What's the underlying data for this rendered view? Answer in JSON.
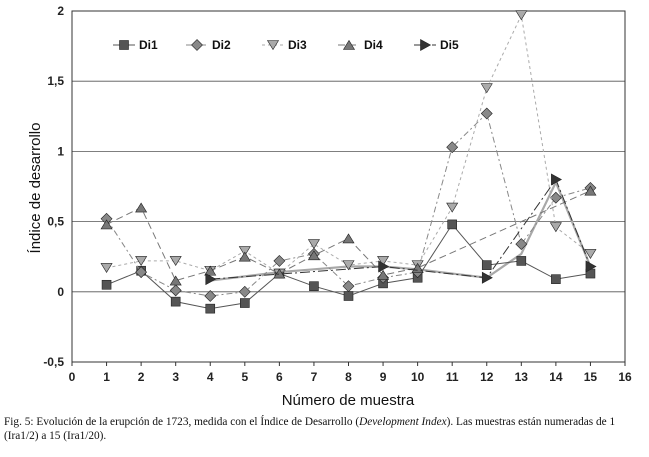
{
  "caption": {
    "prefix": "Fig. 5: Evolución de la erupción de 1723, medida con el Índice de Desarrollo (",
    "italic": "Development Index",
    "suffix": "). Las muestras están numeradas de 1 (Ira1/2) a 15 (Ira1/20)."
  },
  "chart_data": {
    "type": "line",
    "xlabel": "Número de muestra",
    "ylabel": "Índice de desarrollo",
    "xlim": [
      0,
      16
    ],
    "ylim": [
      -0.5,
      2
    ],
    "xticks": [
      "0",
      "1",
      "2",
      "3",
      "4",
      "5",
      "6",
      "7",
      "8",
      "9",
      "10",
      "11",
      "12",
      "13",
      "14",
      "15",
      "16"
    ],
    "yticks": [
      "-0,5",
      "0",
      "0,5",
      "1",
      "1,5",
      "2"
    ],
    "ytick_values": [
      -0.5,
      0,
      0.5,
      1,
      1.5,
      2
    ],
    "grid": "horizontal",
    "legend_position": "top-left",
    "x": [
      1,
      2,
      3,
      4,
      5,
      6,
      7,
      8,
      9,
      10,
      11,
      12,
      13,
      14,
      15
    ],
    "series": [
      {
        "name": "Di1",
        "marker": "square",
        "color": "#555555",
        "values": [
          0.05,
          0.15,
          -0.07,
          -0.12,
          -0.08,
          0.13,
          0.04,
          -0.03,
          0.06,
          0.1,
          0.48,
          0.19,
          0.22,
          0.09,
          0.13
        ]
      },
      {
        "name": "Di2",
        "marker": "diamond",
        "color": "#888888",
        "values": [
          0.52,
          0.14,
          0.01,
          -0.03,
          0.0,
          0.22,
          0.27,
          0.04,
          0.1,
          0.14,
          1.03,
          1.27,
          0.34,
          0.67,
          0.74
        ]
      },
      {
        "name": "Di3",
        "marker": "triangle-down",
        "color": "#aaaaaa",
        "values": [
          0.17,
          0.22,
          0.22,
          0.15,
          0.29,
          0.13,
          0.34,
          0.19,
          0.22,
          0.19,
          0.6,
          1.45,
          1.97,
          0.46,
          0.27
        ]
      },
      {
        "name": "Di4",
        "marker": "triangle-up",
        "color": "#777777",
        "values": [
          0.48,
          0.6,
          0.08,
          0.15,
          0.25,
          0.13,
          0.26,
          0.38,
          0.12,
          0.17,
          null,
          null,
          null,
          null,
          0.72
        ]
      },
      {
        "name": "Di5",
        "marker": "triangle-right",
        "color": "#333333",
        "values": [
          null,
          null,
          null,
          0.09,
          null,
          null,
          null,
          null,
          0.18,
          null,
          null,
          0.1,
          null,
          0.8,
          0.18
        ]
      }
    ],
    "trend_line": {
      "color": "#a8a8a8",
      "x": [
        4,
        5,
        6,
        7,
        8,
        9,
        10,
        11,
        12,
        13,
        14,
        15
      ],
      "values": [
        0.08,
        0.11,
        0.14,
        0.16,
        0.18,
        0.18,
        0.16,
        0.13,
        0.1,
        0.27,
        0.78,
        0.18
      ]
    }
  }
}
